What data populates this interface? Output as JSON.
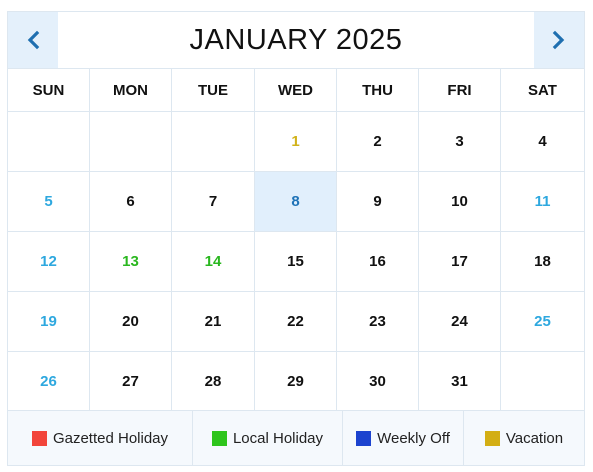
{
  "header": {
    "title": "JANUARY 2025",
    "prev_icon": "chevron-left-icon",
    "next_icon": "chevron-right-icon"
  },
  "weekdays": [
    "SUN",
    "MON",
    "TUE",
    "WED",
    "THU",
    "FRI",
    "SAT"
  ],
  "weeks": [
    [
      null,
      null,
      null,
      {
        "day": "1",
        "type": "vacation"
      },
      {
        "day": "2",
        "type": "normal"
      },
      {
        "day": "3",
        "type": "normal"
      },
      {
        "day": "4",
        "type": "normal"
      }
    ],
    [
      {
        "day": "5",
        "type": "weekend"
      },
      {
        "day": "6",
        "type": "normal"
      },
      {
        "day": "7",
        "type": "normal"
      },
      {
        "day": "8",
        "type": "today"
      },
      {
        "day": "9",
        "type": "normal"
      },
      {
        "day": "10",
        "type": "normal"
      },
      {
        "day": "11",
        "type": "weekend"
      }
    ],
    [
      {
        "day": "12",
        "type": "weekend"
      },
      {
        "day": "13",
        "type": "local"
      },
      {
        "day": "14",
        "type": "local"
      },
      {
        "day": "15",
        "type": "normal"
      },
      {
        "day": "16",
        "type": "normal"
      },
      {
        "day": "17",
        "type": "normal"
      },
      {
        "day": "18",
        "type": "normal"
      }
    ],
    [
      {
        "day": "19",
        "type": "weekend"
      },
      {
        "day": "20",
        "type": "normal"
      },
      {
        "day": "21",
        "type": "normal"
      },
      {
        "day": "22",
        "type": "normal"
      },
      {
        "day": "23",
        "type": "normal"
      },
      {
        "day": "24",
        "type": "normal"
      },
      {
        "day": "25",
        "type": "weekend"
      }
    ],
    [
      {
        "day": "26",
        "type": "weekend"
      },
      {
        "day": "27",
        "type": "normal"
      },
      {
        "day": "28",
        "type": "normal"
      },
      {
        "day": "29",
        "type": "normal"
      },
      {
        "day": "30",
        "type": "normal"
      },
      {
        "day": "31",
        "type": "normal"
      },
      null
    ]
  ],
  "colors": {
    "normal": "#111111",
    "weekend": "#2ea8df",
    "local": "#2ab71f",
    "vacation": "#d1b21a",
    "today": "#1f73b7",
    "accent_bg": "#e4f0fb"
  },
  "legend": [
    {
      "label": "Gazetted Holiday",
      "color": "#f2453b"
    },
    {
      "label": "Local Holiday",
      "color": "#2ec51c"
    },
    {
      "label": "Weekly Off",
      "color": "#1c43cf"
    },
    {
      "label": "Vacation",
      "color": "#d3ae14"
    }
  ]
}
